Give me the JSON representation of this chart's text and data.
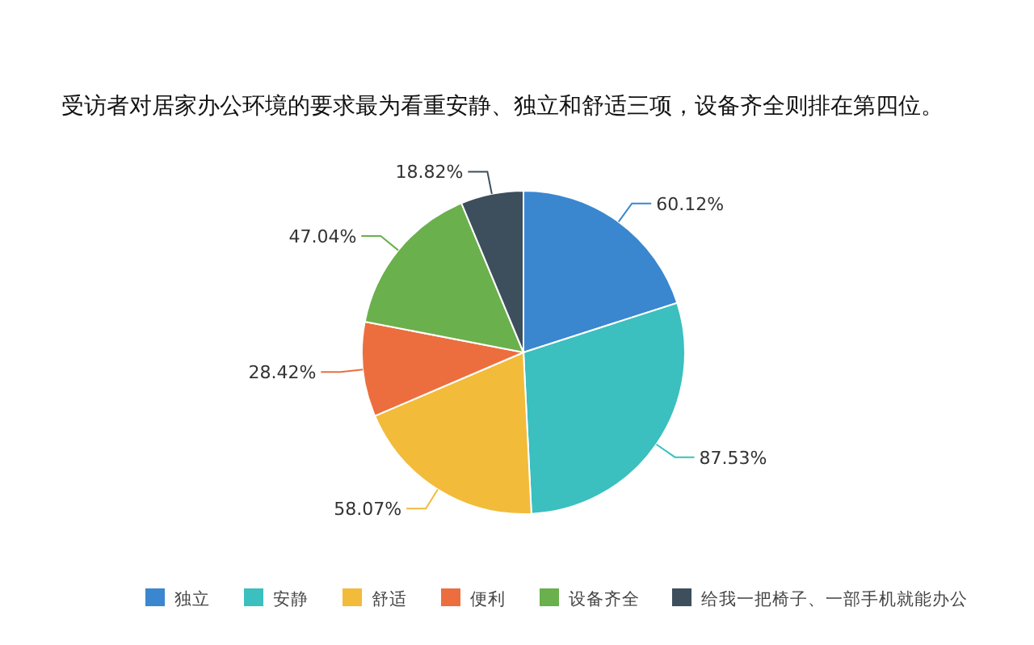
{
  "chart_data": {
    "type": "pie",
    "title": "受访者对居家办公环境的要求最为看重安静、独立和舒适三项，设备齐全则排在第四位。",
    "categories": [
      "独立",
      "安静",
      "舒适",
      "便利",
      "设备齐全",
      "给我一把椅子、一部手机就能办公"
    ],
    "values": [
      60.12,
      87.53,
      58.07,
      28.42,
      47.04,
      18.82
    ],
    "colors": [
      "#3a87cf",
      "#3bbfbf",
      "#f2bb3a",
      "#ec6e3f",
      "#6ab04c",
      "#3d4e5c"
    ],
    "value_labels": [
      "60.12%",
      "87.53%",
      "58.07%",
      "28.42%",
      "47.04%",
      "18.82%"
    ],
    "legend": "bottom"
  }
}
